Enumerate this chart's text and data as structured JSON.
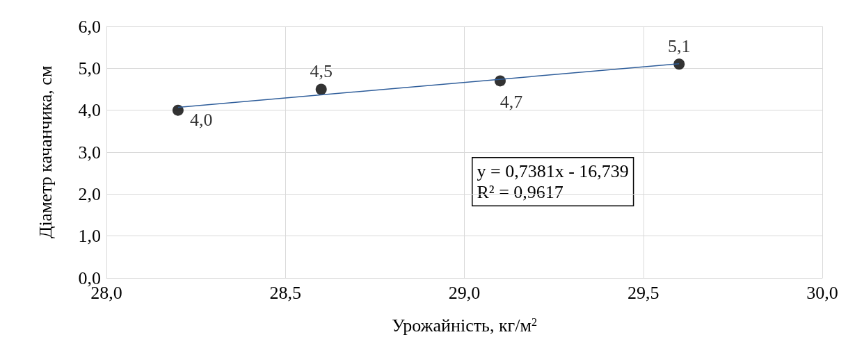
{
  "chart_data": {
    "type": "scatter",
    "xlabel": "Урожайність, кг/м$^{2}$",
    "ylabel": "Діаметр качанчика, см",
    "x": [
      28.2,
      28.6,
      29.1,
      29.6
    ],
    "series": [
      {
        "color": "#000000",
        "values": [
          4.0,
          4.5,
          4.7,
          5.1
        ],
        "value_labels": [
          "4,0",
          "4,5",
          "4,7",
          "5,1"
        ],
        "marker": "circle"
      },
      {
        "type": "line",
        "color": "#2e5d9a",
        "x": [
          28.2,
          29.6
        ],
        "values": [
          4.07,
          5.11
        ],
        "line_style": "solid",
        "marker": "none"
      }
    ],
    "xlim": [
      28,
      30
    ],
    "xticks": [
      {
        "value": 28,
        "label": "28,0"
      },
      {
        "value": 28.5,
        "label": "28,5"
      },
      {
        "value": 29,
        "label": "29,0"
      },
      {
        "value": 29.5,
        "label": "29,5"
      },
      {
        "value": 30,
        "label": "30,0"
      }
    ],
    "ylim": [
      0,
      6
    ],
    "yticks": [
      {
        "value": 0,
        "label": "0,0"
      },
      {
        "value": 1,
        "label": "1,0"
      },
      {
        "value": 2,
        "label": "2,0"
      },
      {
        "value": 3,
        "label": "3,0"
      },
      {
        "value": 4,
        "label": "4,0"
      },
      {
        "value": 5,
        "label": "5,0"
      },
      {
        "value": 6,
        "label": "6,0"
      }
    ],
    "annotations": [
      "y = 0,7381x - 16,739\nR² = 0,9617"
    ],
    "grid": true
  }
}
